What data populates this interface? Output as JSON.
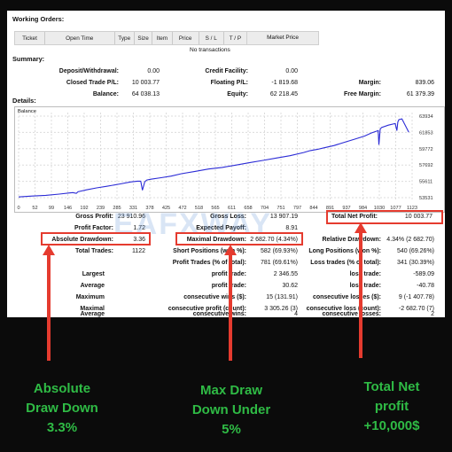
{
  "working_orders": {
    "title": "Working Orders:",
    "columns": [
      "Ticket",
      "Open Time",
      "Type",
      "Size",
      "Item",
      "Price",
      "S / L",
      "T / P",
      "Market Price"
    ],
    "empty_text": "No transactions"
  },
  "summary": {
    "title": "Summary:",
    "deposit_label": "Deposit/Withdrawal:",
    "deposit_value": "0.00",
    "credit_label": "Credit Facility:",
    "credit_value": "0.00",
    "closed_pl_label": "Closed Trade P/L:",
    "closed_pl_value": "10 003.77",
    "floating_pl_label": "Floating P/L:",
    "floating_pl_value": "-1 819.68",
    "margin_label": "Margin:",
    "margin_value": "839.06",
    "balance_label": "Balance:",
    "balance_value": "64 038.13",
    "equity_label": "Equity:",
    "equity_value": "62 218.45",
    "free_margin_label": "Free Margin:",
    "free_margin_value": "61 379.39"
  },
  "details": {
    "title": "Details:",
    "chart_label": "Balance"
  },
  "chart_data": {
    "type": "line",
    "title": "Balance",
    "xlabel": "",
    "ylabel": "",
    "x_ticks": [
      "0",
      "52",
      "99",
      "146",
      "192",
      "239",
      "285",
      "331",
      "378",
      "425",
      "472",
      "518",
      "565",
      "611",
      "658",
      "704",
      "751",
      "797",
      "844",
      "891",
      "937",
      "984",
      "1030",
      "1077",
      "1123"
    ],
    "y_ticks": [
      "63934",
      "61853",
      "59772",
      "57692",
      "55611",
      "53531"
    ],
    "xlim": [
      0,
      1160
    ],
    "ylim": [
      53000,
      64300
    ],
    "series": [
      {
        "color": "#2b2bd6",
        "x": [
          0,
          40,
          80,
          120,
          150,
          160,
          170,
          175,
          185,
          200,
          230,
          260,
          300,
          330,
          350,
          360,
          365,
          372,
          378,
          390,
          420,
          450,
          480,
          520,
          560,
          600,
          640,
          680,
          720,
          760,
          800,
          840,
          860,
          880,
          900,
          930,
          960,
          990,
          1020,
          1040,
          1060,
          1062,
          1066,
          1070,
          1090,
          1110,
          1115,
          1118,
          1121,
          1130,
          1150
        ],
        "values": [
          53540,
          53650,
          53750,
          53900,
          54050,
          54100,
          54000,
          54200,
          54300,
          54450,
          54700,
          54900,
          55200,
          55450,
          55550,
          55550,
          54400,
          55500,
          55700,
          55800,
          56000,
          56200,
          56500,
          56800,
          57100,
          57300,
          57600,
          57900,
          58200,
          58500,
          58800,
          59200,
          59450,
          59600,
          59800,
          60100,
          60500,
          60900,
          61300,
          61700,
          62000,
          60200,
          62200,
          62400,
          62700,
          62900,
          62000,
          63100,
          63400,
          63500,
          61800
        ]
      }
    ]
  },
  "stats": {
    "gross_profit_label": "Gross Profit:",
    "gross_profit_value": "23 910.96",
    "gross_loss_label": "Gross Loss:",
    "gross_loss_value": "13 907.19",
    "total_net_label": "Total Net Profit:",
    "total_net_value": "10 003.77",
    "profit_factor_label": "Profit Factor:",
    "profit_factor_value": "1.72",
    "expected_payoff_label": "Expected Payoff:",
    "expected_payoff_value": "8.91",
    "abs_dd_label": "Absolute Drawdown:",
    "abs_dd_value": "3.36",
    "max_dd_label": "Maximal Drawdown:",
    "max_dd_value": "2 682.70 (4.34%)",
    "rel_dd_label": "Relative Drawdown:",
    "rel_dd_value": "4.34% (2 682.70)",
    "total_trades_label": "Total Trades:",
    "total_trades_value": "1122",
    "short_label": "Short Positions (won %):",
    "short_value": "582 (69.93%)",
    "long_label": "Long Positions (won %):",
    "long_value": "540 (69.26%)",
    "profit_trades_label": "Profit Trades (% of total):",
    "profit_trades_value": "781 (69.61%)",
    "loss_trades_label": "Loss trades (% of total):",
    "loss_trades_value": "341 (30.39%)",
    "largest_label": "Largest",
    "largest_pt_label": "profit trade:",
    "largest_pt_value": "2 346.55",
    "largest_lt_label": "loss trade:",
    "largest_lt_value": "-589.09",
    "average_label": "Average",
    "average_pt_label": "profit trade:",
    "average_pt_value": "30.62",
    "average_lt_label": "loss trade:",
    "average_lt_value": "-40.78",
    "maximum_label": "Maximum",
    "max_cw_label": "consecutive wins ($):",
    "max_cw_value": "15 (131.91)",
    "max_cl_label": "consecutive losses ($):",
    "max_cl_value": "9 (-1 407.78)",
    "maximal_label": "Maximal",
    "maximal_cp_label": "consecutive profit (count):",
    "maximal_cp_value": "3 305.26 (3)",
    "maximal_cl_label": "consecutive loss (count):",
    "maximal_cl_value": "-2 682.70 (7)",
    "avg2_label": "Average",
    "avg_cw_label": "consecutive wins:",
    "avg_cw_value": "4",
    "avg_cl_label": "consecutive losses:",
    "avg_cl_value": "2"
  },
  "watermark": "EAFXWAY",
  "captions": {
    "abs_dd": [
      "Absolute",
      "Draw Down",
      "3.3%"
    ],
    "max_dd": [
      "Max Draw",
      "Down Under",
      "5%"
    ],
    "net": [
      "Total Net",
      "profit",
      "+10,000$"
    ]
  },
  "colors": {
    "highlight": "#e53b2f",
    "caption": "#2fbb45",
    "balance_line": "#2b2bd6"
  }
}
